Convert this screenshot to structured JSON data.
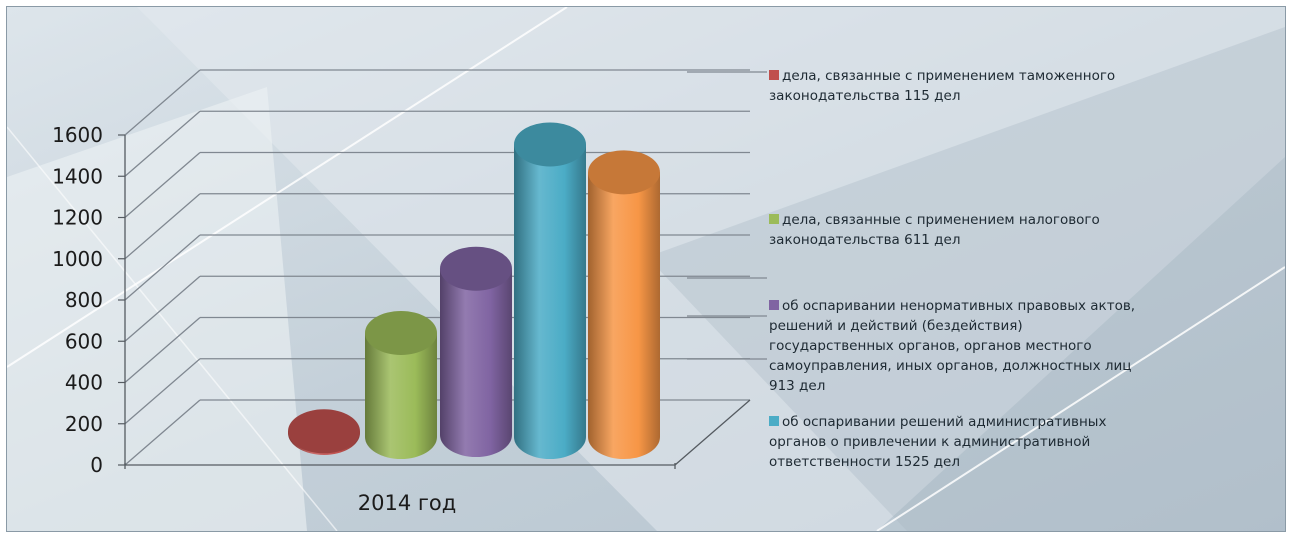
{
  "chart_data": {
    "type": "bar",
    "categories": [
      "2014 год"
    ],
    "series": [
      {
        "name": "дела, связанные с применением таможенного законодательства 115 дел",
        "values": [
          115
        ],
        "color": "#c0504d"
      },
      {
        "name": "дела, связанные с применением налогового законодательства 611 дел",
        "values": [
          611
        ],
        "color": "#9bbb59"
      },
      {
        "name": "об оспаривании ненормативных правовых актов, решений и действий (бездействия) государственных органов, органов местного самоуправления, иных органов, должностных лиц 913 дел",
        "values": [
          913
        ],
        "color": "#8064a2"
      },
      {
        "name": "об оспаривании решений административных органов о привлечении к административной ответственности 1525 дел",
        "values": [
          1525
        ],
        "color": "#4bacc6"
      },
      {
        "name": "",
        "values": [
          1390
        ],
        "color": "#f79646"
      }
    ],
    "yticks": [
      "0",
      "200",
      "400",
      "600",
      "800",
      "1000",
      "1200",
      "1400",
      "1600"
    ],
    "ylim": [
      0,
      1600
    ],
    "legend": "right",
    "grid": true
  },
  "legend_items": [
    {
      "label_lines": [
        "дела, связанные с применением таможенного",
        "законодательства 115 дел"
      ],
      "color": "#c0504d"
    },
    {
      "label_lines": [
        "дела, связанные с применением налогового",
        "законодательства 611 дел"
      ],
      "color": "#9bbb59"
    },
    {
      "label_lines": [
        "об оспаривании ненормативных правовых актов,",
        "решений и действий (бездействия)",
        "государственных органов, органов местного",
        "самоуправления, иных органов, должностных лиц",
        "913 дел"
      ],
      "color": "#8064a2"
    },
    {
      "label_lines": [
        "об оспаривании решений административных",
        "органов о привлечении к административной",
        "ответственности 1525 дел"
      ],
      "color": "#4bacc6"
    }
  ]
}
